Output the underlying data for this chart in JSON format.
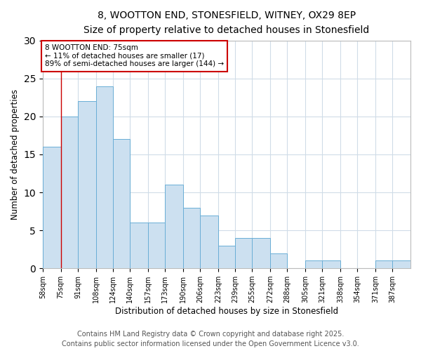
{
  "title_line1": "8, WOOTTON END, STONESFIELD, WITNEY, OX29 8EP",
  "title_line2": "Size of property relative to detached houses in Stonesfield",
  "xlabel": "Distribution of detached houses by size in Stonesfield",
  "ylabel": "Number of detached properties",
  "bins": [
    58,
    75,
    91,
    108,
    124,
    140,
    157,
    173,
    190,
    206,
    223,
    239,
    255,
    272,
    288,
    305,
    321,
    338,
    354,
    371,
    387
  ],
  "heights": [
    16,
    20,
    22,
    24,
    17,
    6,
    6,
    11,
    8,
    7,
    3,
    4,
    4,
    2,
    0,
    1,
    1,
    0,
    0,
    1,
    1
  ],
  "bar_color": "#cce0f0",
  "bar_edgecolor": "#6aaed6",
  "property_value": 75,
  "vline_color": "#cc0000",
  "annotation_text": "8 WOOTTON END: 75sqm\n← 11% of detached houses are smaller (17)\n89% of semi-detached houses are larger (144) →",
  "annotation_box_facecolor": "white",
  "annotation_box_edgecolor": "#cc0000",
  "ylim": [
    0,
    30
  ],
  "yticks": [
    0,
    5,
    10,
    15,
    20,
    25,
    30
  ],
  "footer_line1": "Contains HM Land Registry data © Crown copyright and database right 2025.",
  "footer_line2": "Contains public sector information licensed under the Open Government Licence v3.0.",
  "bg_color": "#ffffff",
  "plot_bg_color": "#ffffff",
  "grid_color": "#d0dce8",
  "title_fontsize": 10,
  "subtitle_fontsize": 9.5,
  "tick_label_fontsize": 7,
  "axis_label_fontsize": 8.5,
  "footer_fontsize": 7,
  "annotation_fontsize": 7.5
}
